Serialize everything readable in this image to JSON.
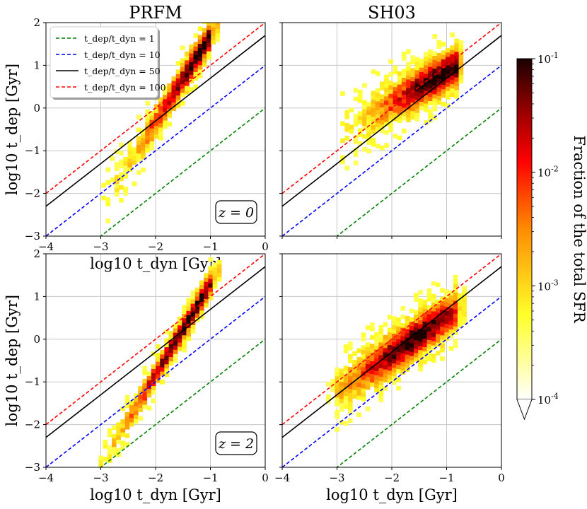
{
  "figure": {
    "colorbar": {
      "label": "Fraction of the total SFR",
      "ticks": [
        "10^-1",
        "10^-2",
        "10^-3",
        "10^-4"
      ],
      "scale": "log",
      "range": [
        0.0001,
        0.1
      ],
      "colormap": "afmhot_r",
      "extend": "min"
    }
  },
  "chart_data": [
    {
      "type": "heatmap",
      "panel": "top-left",
      "title": "PRFM",
      "annotation": "z = 0",
      "xlabel": "log10 t_dyn [Gyr]",
      "ylabel": "log10 t_dep [Gyr]",
      "xlim": [
        -4,
        0
      ],
      "ylim": [
        -3,
        2
      ],
      "xticks": [
        "−4",
        "−3",
        "−2",
        "−1",
        "0"
      ],
      "yticks": [
        "2",
        "1",
        "0",
        "−1",
        "−2",
        "−3"
      ],
      "ridge": {
        "x_start": -2.95,
        "x_end": -1.0,
        "y_start": -2.25,
        "y_end": 1.7,
        "halfwidth": 0.22
      },
      "peak_x": -1.2,
      "lines": [
        {
          "name": "t_dep/t_dyn = 1",
          "offset": 0,
          "color": "#008000",
          "dash": "dashed"
        },
        {
          "name": "t_dep/t_dyn = 10",
          "offset": 1,
          "color": "#0000ff",
          "dash": "dashed"
        },
        {
          "name": "t_dep/t_dyn = 50",
          "offset": 1.699,
          "color": "#000000",
          "dash": "solid"
        },
        {
          "name": "t_dep/t_dyn = 100",
          "offset": 2,
          "color": "#ff0000",
          "dash": "dashed"
        }
      ]
    },
    {
      "type": "heatmap",
      "panel": "top-right",
      "title": "SH03",
      "annotation": "",
      "xlabel": "",
      "ylabel": "",
      "xlim": [
        -4,
        0
      ],
      "ylim": [
        -3,
        2
      ],
      "ridge": {
        "x_start": -2.9,
        "x_end": -0.8,
        "y_start": -0.55,
        "y_end": 1.0,
        "halfwidth": 0.3
      },
      "peak_x": -1.1,
      "lines": [
        {
          "name": "t_dep/t_dyn = 1",
          "offset": 0,
          "color": "#008000",
          "dash": "dashed"
        },
        {
          "name": "t_dep/t_dyn = 10",
          "offset": 1,
          "color": "#0000ff",
          "dash": "dashed"
        },
        {
          "name": "t_dep/t_dyn = 50",
          "offset": 1.699,
          "color": "#000000",
          "dash": "solid"
        },
        {
          "name": "t_dep/t_dyn = 100",
          "offset": 2,
          "color": "#ff0000",
          "dash": "dashed"
        }
      ]
    },
    {
      "type": "heatmap",
      "panel": "bottom-left",
      "title": "",
      "annotation": "z = 2",
      "xlabel": "log10 t_dyn [Gyr]",
      "ylabel": "log10 t_dep [Gyr]",
      "xlim": [
        -4,
        0
      ],
      "ylim": [
        -3,
        2
      ],
      "xticks": [
        "−4",
        "−3",
        "−2",
        "−1",
        "0"
      ],
      "yticks": [
        "2",
        "1",
        "0",
        "−1",
        "−2",
        "−3"
      ],
      "ridge": {
        "x_start": -3.0,
        "x_end": -0.95,
        "y_start": -2.95,
        "y_end": 1.4,
        "halfwidth": 0.18
      },
      "peak_x": -1.4,
      "lines": [
        {
          "name": "t_dep/t_dyn = 1",
          "offset": 0,
          "color": "#008000",
          "dash": "dashed"
        },
        {
          "name": "t_dep/t_dyn = 10",
          "offset": 1,
          "color": "#0000ff",
          "dash": "dashed"
        },
        {
          "name": "t_dep/t_dyn = 50",
          "offset": 1.699,
          "color": "#000000",
          "dash": "solid"
        },
        {
          "name": "t_dep/t_dyn = 100",
          "offset": 2,
          "color": "#ff0000",
          "dash": "dashed"
        }
      ]
    },
    {
      "type": "heatmap",
      "panel": "bottom-right",
      "title": "",
      "annotation": "",
      "xlabel": "log10 t_dyn [Gyr]",
      "ylabel": "",
      "xlim": [
        -4,
        0
      ],
      "ylim": [
        -3,
        2
      ],
      "xticks": [
        "−4",
        "−3",
        "−2",
        "−1",
        "0"
      ],
      "ridge": {
        "x_start": -3.0,
        "x_end": -0.8,
        "y_start": -1.2,
        "y_end": 0.7,
        "halfwidth": 0.3
      },
      "peak_x": -1.6,
      "lines": [
        {
          "name": "t_dep/t_dyn = 1",
          "offset": 0,
          "color": "#008000",
          "dash": "dashed"
        },
        {
          "name": "t_dep/t_dyn = 10",
          "offset": 1,
          "color": "#0000ff",
          "dash": "dashed"
        },
        {
          "name": "t_dep/t_dyn = 50",
          "offset": 1.699,
          "color": "#000000",
          "dash": "solid"
        },
        {
          "name": "t_dep/t_dyn = 100",
          "offset": 2,
          "color": "#ff0000",
          "dash": "dashed"
        }
      ]
    }
  ]
}
